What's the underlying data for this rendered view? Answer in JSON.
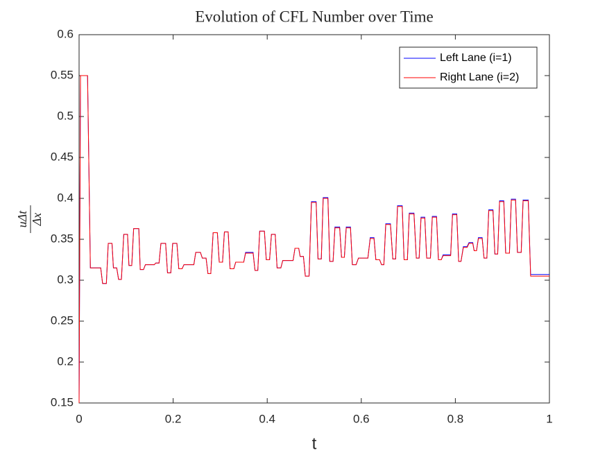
{
  "chart_data": {
    "type": "line",
    "title": "Evolution of CFL Number over Time",
    "x_label": "t",
    "y_label": {
      "numerator": "uΔt",
      "denominator": "Δx"
    },
    "xlim": [
      0,
      1
    ],
    "ylim": [
      0.15,
      0.6
    ],
    "xticks": [
      0,
      0.2,
      0.4,
      0.6,
      0.8,
      1
    ],
    "yticks": [
      0.15,
      0.2,
      0.25,
      0.3,
      0.35,
      0.4,
      0.45,
      0.5,
      0.55,
      0.6
    ],
    "legend": "northeast",
    "grid": false,
    "x": [
      0,
      0.003,
      0.018,
      0.024,
      0.046,
      0.05,
      0.058,
      0.062,
      0.07,
      0.073,
      0.08,
      0.084,
      0.09,
      0.095,
      0.103,
      0.106,
      0.112,
      0.116,
      0.127,
      0.13,
      0.137,
      0.141,
      0.16,
      0.163,
      0.17,
      0.174,
      0.184,
      0.188,
      0.195,
      0.199,
      0.208,
      0.212,
      0.219,
      0.223,
      0.244,
      0.248,
      0.258,
      0.262,
      0.27,
      0.274,
      0.28,
      0.285,
      0.294,
      0.298,
      0.305,
      0.309,
      0.317,
      0.321,
      0.329,
      0.333,
      0.35,
      0.354,
      0.37,
      0.374,
      0.38,
      0.384,
      0.394,
      0.398,
      0.405,
      0.409,
      0.417,
      0.421,
      0.429,
      0.433,
      0.455,
      0.459,
      0.467,
      0.47,
      0.477,
      0.481,
      0.489,
      0.494,
      0.504,
      0.508,
      0.515,
      0.519,
      0.529,
      0.533,
      0.54,
      0.544,
      0.554,
      0.558,
      0.564,
      0.568,
      0.577,
      0.581,
      0.589,
      0.594,
      0.614,
      0.619,
      0.627,
      0.631,
      0.639,
      0.643,
      0.648,
      0.652,
      0.662,
      0.667,
      0.673,
      0.677,
      0.687,
      0.691,
      0.698,
      0.702,
      0.712,
      0.717,
      0.723,
      0.727,
      0.735,
      0.739,
      0.747,
      0.751,
      0.76,
      0.764,
      0.77,
      0.774,
      0.79,
      0.794,
      0.803,
      0.807,
      0.812,
      0.817,
      0.825,
      0.829,
      0.837,
      0.84,
      0.845,
      0.849,
      0.857,
      0.861,
      0.867,
      0.871,
      0.88,
      0.884,
      0.89,
      0.894,
      0.903,
      0.907,
      0.915,
      0.919,
      0.928,
      0.932,
      0.94,
      0.944,
      0.955,
      0.96,
      1
    ],
    "series": [
      {
        "name": "Left Lane (i=1)",
        "color": "#0000ff",
        "values": [
          0.15,
          0.55,
          0.55,
          0.315,
          0.315,
          0.296,
          0.296,
          0.345,
          0.345,
          0.315,
          0.315,
          0.301,
          0.301,
          0.356,
          0.356,
          0.318,
          0.318,
          0.363,
          0.363,
          0.313,
          0.313,
          0.319,
          0.319,
          0.321,
          0.321,
          0.345,
          0.345,
          0.309,
          0.309,
          0.345,
          0.345,
          0.314,
          0.314,
          0.319,
          0.319,
          0.334,
          0.334,
          0.327,
          0.327,
          0.308,
          0.308,
          0.358,
          0.358,
          0.322,
          0.322,
          0.359,
          0.359,
          0.314,
          0.314,
          0.322,
          0.322,
          0.334,
          0.334,
          0.312,
          0.312,
          0.36,
          0.36,
          0.325,
          0.325,
          0.356,
          0.356,
          0.315,
          0.315,
          0.324,
          0.324,
          0.339,
          0.339,
          0.329,
          0.329,
          0.305,
          0.305,
          0.396,
          0.396,
          0.326,
          0.326,
          0.401,
          0.401,
          0.323,
          0.323,
          0.365,
          0.365,
          0.328,
          0.328,
          0.365,
          0.365,
          0.319,
          0.319,
          0.327,
          0.327,
          0.352,
          0.352,
          0.325,
          0.325,
          0.319,
          0.319,
          0.369,
          0.369,
          0.326,
          0.326,
          0.391,
          0.391,
          0.325,
          0.325,
          0.382,
          0.382,
          0.327,
          0.327,
          0.377,
          0.377,
          0.327,
          0.327,
          0.378,
          0.378,
          0.325,
          0.325,
          0.331,
          0.331,
          0.381,
          0.381,
          0.323,
          0.323,
          0.341,
          0.341,
          0.346,
          0.346,
          0.336,
          0.336,
          0.352,
          0.352,
          0.327,
          0.327,
          0.386,
          0.386,
          0.332,
          0.332,
          0.397,
          0.397,
          0.333,
          0.333,
          0.399,
          0.399,
          0.334,
          0.334,
          0.398,
          0.398,
          0.307,
          0.307
        ]
      },
      {
        "name": "Right Lane (i=2)",
        "color": "#ff0000",
        "values": [
          0.15,
          0.55,
          0.55,
          0.315,
          0.315,
          0.296,
          0.296,
          0.345,
          0.345,
          0.315,
          0.315,
          0.301,
          0.301,
          0.356,
          0.356,
          0.318,
          0.318,
          0.363,
          0.363,
          0.313,
          0.313,
          0.319,
          0.319,
          0.321,
          0.321,
          0.345,
          0.345,
          0.309,
          0.309,
          0.345,
          0.345,
          0.314,
          0.314,
          0.319,
          0.319,
          0.334,
          0.334,
          0.327,
          0.327,
          0.308,
          0.308,
          0.358,
          0.358,
          0.322,
          0.322,
          0.359,
          0.359,
          0.314,
          0.314,
          0.322,
          0.322,
          0.333,
          0.333,
          0.312,
          0.312,
          0.36,
          0.36,
          0.325,
          0.325,
          0.356,
          0.356,
          0.315,
          0.315,
          0.324,
          0.324,
          0.339,
          0.339,
          0.329,
          0.329,
          0.305,
          0.305,
          0.395,
          0.395,
          0.326,
          0.326,
          0.4,
          0.4,
          0.323,
          0.323,
          0.364,
          0.364,
          0.328,
          0.328,
          0.364,
          0.364,
          0.319,
          0.319,
          0.327,
          0.327,
          0.351,
          0.351,
          0.325,
          0.325,
          0.319,
          0.319,
          0.368,
          0.368,
          0.326,
          0.326,
          0.39,
          0.39,
          0.325,
          0.325,
          0.381,
          0.381,
          0.327,
          0.327,
          0.376,
          0.376,
          0.327,
          0.327,
          0.377,
          0.377,
          0.325,
          0.325,
          0.33,
          0.33,
          0.38,
          0.38,
          0.323,
          0.323,
          0.34,
          0.34,
          0.345,
          0.345,
          0.336,
          0.336,
          0.351,
          0.351,
          0.327,
          0.327,
          0.385,
          0.385,
          0.332,
          0.332,
          0.396,
          0.396,
          0.333,
          0.333,
          0.398,
          0.398,
          0.334,
          0.334,
          0.397,
          0.397,
          0.305,
          0.305
        ]
      }
    ]
  }
}
